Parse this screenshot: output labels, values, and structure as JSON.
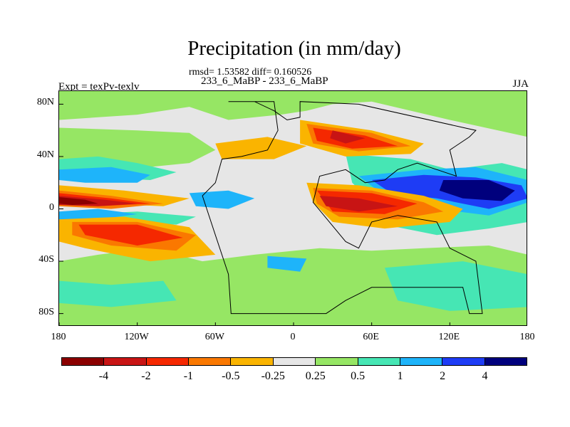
{
  "title": "Precipitation (in mm/day)",
  "stats": "rmsd= 1.53582 diff= 0.160526",
  "subtitle": "233_6_MaBP - 233_6_MaBP",
  "left_label": "Expt = texPv-texlv",
  "right_label": "JJA",
  "axes": {
    "y_ticks": [
      "80N",
      "40N",
      "0",
      "40S",
      "80S"
    ],
    "y_values": [
      80,
      40,
      0,
      -40,
      -80
    ],
    "x_ticks": [
      "180",
      "120W",
      "60W",
      "0",
      "60E",
      "120E",
      "180"
    ],
    "x_values": [
      -180,
      -120,
      -60,
      0,
      60,
      120,
      180
    ],
    "lon_range": [
      -180,
      180
    ],
    "lat_range": [
      -90,
      90
    ]
  },
  "colorbar": {
    "colors": [
      "#8b0000",
      "#c81414",
      "#f52800",
      "#fa7800",
      "#fab400",
      "#e6e6e6",
      "#96e664",
      "#46e6b4",
      "#1eb4fa",
      "#1e3cf5",
      "#00007d"
    ],
    "labels": [
      "-4",
      "-2",
      "-1",
      "-0.5",
      "-0.25",
      "0.25",
      "0.5",
      "1",
      "2",
      "4"
    ]
  },
  "map": {
    "background_color": "#e6e6e6",
    "field_regions": [
      {
        "level": "0.25 to 0.5",
        "color": "#96e664",
        "points": [
          [
            -180,
            90
          ],
          [
            180,
            90
          ],
          [
            180,
            55
          ],
          [
            120,
            68
          ],
          [
            60,
            82
          ],
          [
            30,
            80
          ],
          [
            10,
            75
          ],
          [
            -10,
            72
          ],
          [
            -50,
            68
          ],
          [
            -80,
            78
          ],
          [
            -120,
            72
          ],
          [
            -150,
            70
          ],
          [
            -180,
            68
          ]
        ]
      },
      {
        "level": "0.25 to 0.5",
        "color": "#96e664",
        "points": [
          [
            -180,
            62
          ],
          [
            -120,
            60
          ],
          [
            -80,
            58
          ],
          [
            -60,
            45
          ],
          [
            -80,
            35
          ],
          [
            -130,
            30
          ],
          [
            -180,
            32
          ]
        ]
      },
      {
        "level": "0.25 to 0.5",
        "color": "#96e664",
        "points": [
          [
            -180,
            -40
          ],
          [
            -150,
            -35
          ],
          [
            -110,
            -30
          ],
          [
            -70,
            -40
          ],
          [
            -30,
            -35
          ],
          [
            20,
            -30
          ],
          [
            60,
            -32
          ],
          [
            100,
            -30
          ],
          [
            150,
            -28
          ],
          [
            180,
            -35
          ],
          [
            180,
            -90
          ],
          [
            -180,
            -90
          ]
        ]
      },
      {
        "level": "0.5 to 1",
        "color": "#46e6b4",
        "points": [
          [
            -180,
            38
          ],
          [
            -150,
            40
          ],
          [
            -120,
            35
          ],
          [
            -90,
            28
          ],
          [
            -110,
            22
          ],
          [
            -150,
            24
          ],
          [
            -180,
            26
          ]
        ]
      },
      {
        "level": "0.5 to 1",
        "color": "#46e6b4",
        "points": [
          [
            -180,
            -5
          ],
          [
            -120,
            -2
          ],
          [
            -75,
            -6
          ],
          [
            -90,
            -12
          ],
          [
            -140,
            -10
          ],
          [
            -180,
            -12
          ]
        ]
      },
      {
        "level": "0.5 to 1",
        "color": "#46e6b4",
        "points": [
          [
            -180,
            -55
          ],
          [
            -140,
            -58
          ],
          [
            -100,
            -55
          ],
          [
            -90,
            -70
          ],
          [
            -140,
            -75
          ],
          [
            -180,
            -72
          ]
        ]
      },
      {
        "level": "0.5 to 1",
        "color": "#46e6b4",
        "points": [
          [
            40,
            42
          ],
          [
            90,
            38
          ],
          [
            120,
            30
          ],
          [
            160,
            35
          ],
          [
            180,
            30
          ],
          [
            180,
            -10
          ],
          [
            150,
            -15
          ],
          [
            110,
            -20
          ],
          [
            70,
            -12
          ],
          [
            60,
            5
          ],
          [
            45,
            20
          ]
        ]
      },
      {
        "level": "0.5 to 1",
        "color": "#46e6b4",
        "points": [
          [
            70,
            -45
          ],
          [
            130,
            -40
          ],
          [
            180,
            -50
          ],
          [
            180,
            -75
          ],
          [
            120,
            -78
          ],
          [
            80,
            -70
          ]
        ]
      },
      {
        "level": "1 to 2",
        "color": "#1eb4fa",
        "points": [
          [
            -180,
            30
          ],
          [
            -140,
            32
          ],
          [
            -110,
            26
          ],
          [
            -120,
            20
          ],
          [
            -160,
            20
          ],
          [
            -180,
            22
          ]
        ]
      },
      {
        "level": "1 to 2",
        "color": "#1eb4fa",
        "points": [
          [
            -80,
            12
          ],
          [
            -50,
            14
          ],
          [
            -30,
            8
          ],
          [
            -50,
            0
          ],
          [
            -75,
            2
          ]
        ]
      },
      {
        "level": "1 to 2",
        "color": "#1eb4fa",
        "points": [
          [
            -180,
            -2
          ],
          [
            -150,
            0
          ],
          [
            -120,
            -4
          ],
          [
            -150,
            -8
          ],
          [
            -180,
            -8
          ]
        ]
      },
      {
        "level": "1 to 2",
        "color": "#1eb4fa",
        "points": [
          [
            50,
            25
          ],
          [
            100,
            30
          ],
          [
            140,
            32
          ],
          [
            180,
            22
          ],
          [
            180,
            5
          ],
          [
            150,
            -5
          ],
          [
            110,
            0
          ],
          [
            70,
            10
          ]
        ]
      },
      {
        "level": "1 to 2",
        "color": "#1eb4fa",
        "points": [
          [
            -20,
            -36
          ],
          [
            10,
            -38
          ],
          [
            5,
            -48
          ],
          [
            -20,
            -45
          ]
        ]
      },
      {
        "level": "2 to 4",
        "color": "#1e3cf5",
        "points": [
          [
            60,
            22
          ],
          [
            100,
            26
          ],
          [
            140,
            24
          ],
          [
            175,
            18
          ],
          [
            180,
            8
          ],
          [
            150,
            0
          ],
          [
            110,
            8
          ],
          [
            75,
            12
          ]
        ]
      },
      {
        "level": "> 4",
        "color": "#00007d",
        "points": [
          [
            115,
            22
          ],
          [
            150,
            22
          ],
          [
            170,
            14
          ],
          [
            160,
            6
          ],
          [
            130,
            8
          ],
          [
            112,
            14
          ]
        ]
      },
      {
        "level": "-0.25 to -0.5",
        "color": "#fab400",
        "points": [
          [
            -180,
            18
          ],
          [
            -130,
            14
          ],
          [
            -80,
            8
          ],
          [
            -100,
            2
          ],
          [
            -150,
            4
          ],
          [
            -180,
            6
          ]
        ]
      },
      {
        "level": "-0.25 to -0.5",
        "color": "#fab400",
        "points": [
          [
            -180,
            -8
          ],
          [
            -130,
            -6
          ],
          [
            -80,
            -14
          ],
          [
            -60,
            -35
          ],
          [
            -110,
            -40
          ],
          [
            -160,
            -30
          ],
          [
            -180,
            -25
          ]
        ]
      },
      {
        "level": "-0.25 to -0.5",
        "color": "#fab400",
        "points": [
          [
            -60,
            50
          ],
          [
            -20,
            55
          ],
          [
            10,
            48
          ],
          [
            -15,
            38
          ],
          [
            -55,
            38
          ]
        ]
      },
      {
        "level": "-0.25 to -0.5",
        "color": "#fab400",
        "points": [
          [
            5,
            68
          ],
          [
            60,
            60
          ],
          [
            100,
            50
          ],
          [
            90,
            42
          ],
          [
            40,
            40
          ],
          [
            5,
            50
          ]
        ]
      },
      {
        "level": "-0.25 to -0.5",
        "color": "#fab400",
        "points": [
          [
            10,
            20
          ],
          [
            50,
            18
          ],
          [
            100,
            10
          ],
          [
            130,
            0
          ],
          [
            120,
            -10
          ],
          [
            70,
            -15
          ],
          [
            30,
            -10
          ],
          [
            15,
            5
          ]
        ]
      },
      {
        "level": "-0.5 to -1",
        "color": "#fa7800",
        "points": [
          [
            -180,
            14
          ],
          [
            -140,
            10
          ],
          [
            -100,
            4
          ],
          [
            -140,
            0
          ],
          [
            -180,
            2
          ]
        ]
      },
      {
        "level": "-0.5 to -1",
        "color": "#fa7800",
        "points": [
          [
            -170,
            -10
          ],
          [
            -120,
            -10
          ],
          [
            -75,
            -20
          ],
          [
            -90,
            -32
          ],
          [
            -140,
            -28
          ],
          [
            -170,
            -20
          ]
        ]
      },
      {
        "level": "-0.5 to -1",
        "color": "#fa7800",
        "points": [
          [
            10,
            65
          ],
          [
            60,
            58
          ],
          [
            90,
            48
          ],
          [
            50,
            44
          ],
          [
            15,
            50
          ]
        ]
      },
      {
        "level": "-0.5 to -1",
        "color": "#fa7800",
        "points": [
          [
            15,
            16
          ],
          [
            60,
            14
          ],
          [
            100,
            5
          ],
          [
            115,
            -2
          ],
          [
            80,
            -8
          ],
          [
            35,
            -6
          ],
          [
            18,
            4
          ]
        ]
      },
      {
        "level": "-1 to -2",
        "color": "#f52800",
        "points": [
          [
            -180,
            12
          ],
          [
            -140,
            8
          ],
          [
            -110,
            4
          ],
          [
            -150,
            2
          ],
          [
            -180,
            4
          ]
        ]
      },
      {
        "level": "-1 to -2",
        "color": "#f52800",
        "points": [
          [
            -165,
            -12
          ],
          [
            -120,
            -12
          ],
          [
            -85,
            -22
          ],
          [
            -120,
            -28
          ],
          [
            -160,
            -20
          ]
        ]
      },
      {
        "level": "-1 to -2",
        "color": "#f52800",
        "points": [
          [
            15,
            62
          ],
          [
            55,
            56
          ],
          [
            80,
            48
          ],
          [
            45,
            46
          ],
          [
            18,
            52
          ]
        ]
      },
      {
        "level": "-1 to -2",
        "color": "#f52800",
        "points": [
          [
            18,
            14
          ],
          [
            60,
            12
          ],
          [
            95,
            4
          ],
          [
            70,
            -4
          ],
          [
            30,
            -2
          ]
        ]
      },
      {
        "level": "-2 to -4",
        "color": "#c81414",
        "points": [
          [
            -180,
            10
          ],
          [
            -145,
            7
          ],
          [
            -120,
            4
          ],
          [
            -150,
            2
          ],
          [
            -180,
            3
          ]
        ]
      },
      {
        "level": "-2 to -4",
        "color": "#c81414",
        "points": [
          [
            20,
            10
          ],
          [
            50,
            8
          ],
          [
            80,
            2
          ],
          [
            50,
            -2
          ],
          [
            25,
            2
          ]
        ]
      },
      {
        "level": "-2 to -4",
        "color": "#c81414",
        "points": [
          [
            30,
            60
          ],
          [
            55,
            54
          ],
          [
            40,
            50
          ],
          [
            28,
            54
          ]
        ]
      },
      {
        "level": "< -4",
        "color": "#8b0000",
        "points": [
          [
            -180,
            9
          ],
          [
            -160,
            7
          ],
          [
            -150,
            4
          ],
          [
            -170,
            3
          ],
          [
            -180,
            4
          ]
        ]
      }
    ],
    "continent_outline": [
      [
        -50,
        82
      ],
      [
        -15,
        82
      ],
      [
        -12,
        60
      ],
      [
        -20,
        45
      ],
      [
        -40,
        40
      ],
      [
        -55,
        38
      ],
      [
        -60,
        20
      ],
      [
        -70,
        10
      ],
      [
        -60,
        -20
      ],
      [
        -50,
        -50
      ],
      [
        -48,
        -80
      ],
      [
        25,
        -80
      ],
      [
        40,
        -70
      ],
      [
        60,
        -60
      ],
      [
        130,
        -60
      ],
      [
        135,
        -80
      ],
      [
        145,
        -80
      ],
      [
        140,
        -40
      ],
      [
        120,
        -30
      ],
      [
        110,
        -10
      ],
      [
        80,
        -5
      ],
      [
        60,
        -10
      ],
      [
        50,
        -30
      ],
      [
        40,
        -25
      ],
      [
        15,
        5
      ],
      [
        20,
        25
      ],
      [
        40,
        30
      ],
      [
        55,
        20
      ],
      [
        70,
        22
      ],
      [
        80,
        30
      ],
      [
        95,
        35
      ],
      [
        110,
        30
      ],
      [
        125,
        25
      ],
      [
        120,
        45
      ],
      [
        135,
        55
      ],
      [
        140,
        60
      ],
      [
        50,
        80
      ],
      [
        5,
        82
      ],
      [
        5,
        70
      ],
      [
        -5,
        68
      ],
      [
        -15,
        75
      ],
      [
        -30,
        82
      ]
    ]
  }
}
